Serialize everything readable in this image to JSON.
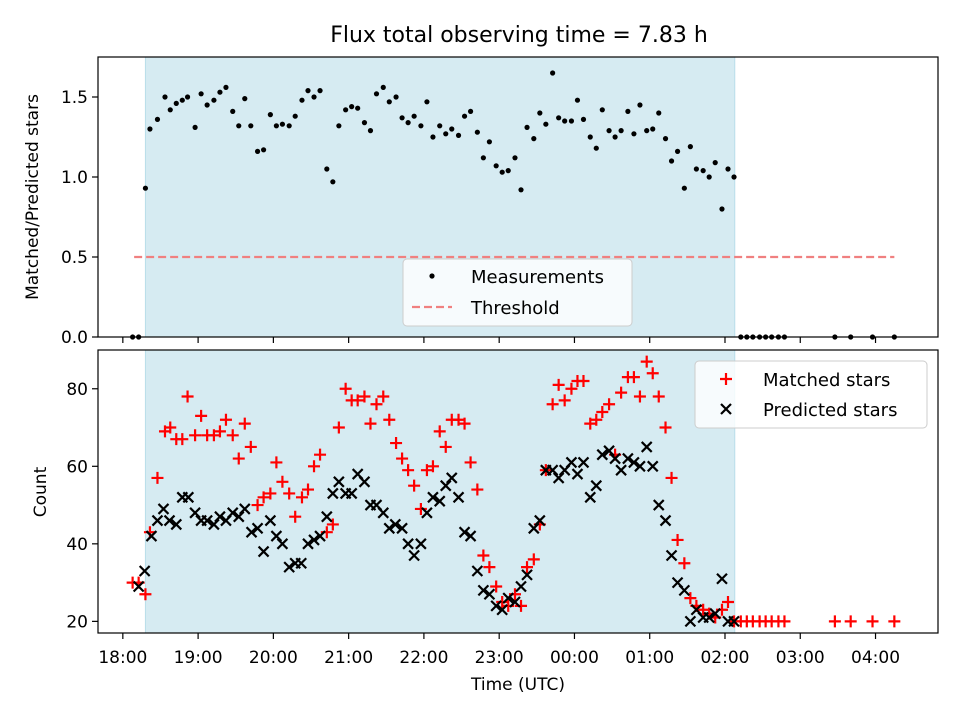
{
  "title": "Flux total observing time = 7.83 h",
  "xlabel": "Time (UTC)",
  "xticks": [
    "18:00",
    "19:00",
    "20:00",
    "21:00",
    "22:00",
    "23:00",
    "00:00",
    "01:00",
    "02:00",
    "03:00",
    "04:00"
  ],
  "colors": {
    "shade": "#add8e6",
    "threshold": "#f08080",
    "matched": "#ff0000",
    "predicted": "#000000",
    "measurement": "#000000"
  },
  "chart_data": [
    {
      "type": "scatter",
      "panel": "top",
      "ylabel": "Matched/Predicted stars",
      "xlim": [
        17.67,
        28.83
      ],
      "ylim": [
        0,
        1.75
      ],
      "yticks": [
        "0.0",
        "0.5",
        "1.0",
        "1.5"
      ],
      "shaded_interval": [
        18.3,
        26.13
      ],
      "threshold": {
        "label": "Threshold",
        "value": 0.5,
        "x": [
          18.15,
          28.25
        ]
      },
      "legend": {
        "position": "bottom-center",
        "entries": [
          "Measurements",
          "Threshold"
        ]
      },
      "series": [
        {
          "name": "Measurements",
          "x": [
            18.13,
            18.21,
            18.3,
            18.36,
            18.46,
            18.56,
            18.63,
            18.71,
            18.79,
            18.86,
            18.96,
            19.04,
            19.12,
            19.21,
            19.29,
            19.37,
            19.46,
            19.54,
            19.62,
            19.7,
            19.79,
            19.87,
            19.96,
            20.04,
            20.12,
            20.21,
            20.29,
            20.38,
            20.46,
            20.54,
            20.62,
            20.71,
            20.79,
            20.87,
            20.96,
            21.04,
            21.12,
            21.21,
            21.29,
            21.37,
            21.46,
            21.54,
            21.63,
            21.71,
            21.79,
            21.87,
            21.96,
            22.04,
            22.12,
            22.21,
            22.29,
            22.37,
            22.46,
            22.54,
            22.62,
            22.71,
            22.79,
            22.87,
            22.96,
            23.04,
            23.12,
            23.21,
            23.29,
            23.37,
            23.46,
            23.54,
            23.62,
            23.71,
            23.79,
            23.87,
            23.96,
            24.04,
            24.12,
            24.21,
            24.29,
            24.37,
            24.46,
            24.54,
            24.62,
            24.71,
            24.79,
            24.87,
            24.96,
            25.04,
            25.12,
            25.21,
            25.29,
            25.37,
            25.46,
            25.54,
            25.62,
            25.71,
            25.79,
            25.87,
            25.96,
            26.04,
            26.12,
            26.21,
            26.29,
            26.37,
            26.46,
            26.54,
            26.62,
            26.71,
            26.79,
            27.46,
            27.67,
            27.96,
            28.25
          ],
          "y": [
            0.0,
            0.0,
            0.93,
            1.3,
            1.36,
            1.5,
            1.42,
            1.46,
            1.48,
            1.5,
            1.31,
            1.52,
            1.45,
            1.48,
            1.53,
            1.56,
            1.41,
            1.32,
            1.49,
            1.32,
            1.16,
            1.17,
            1.39,
            1.32,
            1.33,
            1.32,
            1.38,
            1.48,
            1.54,
            1.5,
            1.54,
            1.05,
            0.97,
            1.32,
            1.42,
            1.44,
            1.43,
            1.34,
            1.29,
            1.52,
            1.56,
            1.47,
            1.5,
            1.37,
            1.34,
            1.38,
            1.32,
            1.47,
            1.25,
            1.32,
            1.27,
            1.3,
            1.26,
            1.38,
            1.41,
            1.28,
            1.12,
            1.22,
            1.07,
            1.03,
            1.04,
            1.12,
            0.92,
            1.31,
            1.24,
            1.4,
            1.33,
            1.65,
            1.37,
            1.35,
            1.35,
            1.48,
            1.36,
            1.25,
            1.18,
            1.42,
            1.29,
            1.25,
            1.29,
            1.41,
            1.27,
            1.45,
            1.29,
            1.3,
            1.4,
            1.24,
            1.1,
            1.16,
            0.93,
            1.19,
            1.05,
            1.04,
            1.0,
            1.09,
            0.8,
            1.05,
            1.0,
            0.0,
            0.0,
            0.0,
            0.0,
            0.0,
            0.0,
            0.0,
            0.0,
            0.0,
            0.0,
            0.0,
            0.0
          ]
        }
      ]
    },
    {
      "type": "scatter",
      "panel": "bottom",
      "ylabel": "Count",
      "xlim": [
        17.67,
        28.83
      ],
      "ylim": [
        17,
        90
      ],
      "yticks": [
        "20",
        "40",
        "60",
        "80"
      ],
      "shaded_interval": [
        18.3,
        26.13
      ],
      "legend": {
        "position": "top-right",
        "entries": [
          "Matched stars",
          "Predicted stars"
        ]
      },
      "series": [
        {
          "name": "Matched stars",
          "marker": "+",
          "x": [
            18.13,
            18.21,
            18.3,
            18.36,
            18.46,
            18.56,
            18.63,
            18.71,
            18.79,
            18.86,
            18.96,
            19.04,
            19.12,
            19.21,
            19.29,
            19.37,
            19.46,
            19.54,
            19.62,
            19.7,
            19.79,
            19.87,
            19.96,
            20.04,
            20.12,
            20.21,
            20.29,
            20.38,
            20.46,
            20.54,
            20.62,
            20.71,
            20.79,
            20.87,
            20.96,
            21.04,
            21.12,
            21.21,
            21.29,
            21.37,
            21.46,
            21.54,
            21.63,
            21.71,
            21.79,
            21.87,
            21.96,
            22.04,
            22.12,
            22.21,
            22.29,
            22.37,
            22.46,
            22.54,
            22.62,
            22.71,
            22.79,
            22.87,
            22.96,
            23.04,
            23.12,
            23.21,
            23.29,
            23.37,
            23.46,
            23.54,
            23.62,
            23.71,
            23.79,
            23.87,
            23.96,
            24.04,
            24.12,
            24.21,
            24.29,
            24.37,
            24.46,
            24.54,
            24.62,
            24.71,
            24.79,
            24.87,
            24.96,
            25.04,
            25.12,
            25.21,
            25.29,
            25.37,
            25.46,
            25.54,
            25.62,
            25.71,
            25.79,
            25.87,
            25.96,
            26.04,
            26.12,
            26.21,
            26.29,
            26.37,
            26.46,
            26.54,
            26.62,
            26.71,
            26.79,
            27.46,
            27.67,
            27.96,
            28.25
          ],
          "y": [
            30,
            30,
            27,
            43,
            57,
            69,
            70,
            67,
            67,
            78,
            68,
            73,
            68,
            68,
            69,
            72,
            68,
            62,
            71,
            65,
            50,
            52,
            53,
            61,
            56,
            53,
            47,
            52,
            54,
            60,
            63,
            43,
            45,
            70,
            80,
            77,
            77,
            78,
            71,
            76,
            78,
            72,
            66,
            62,
            59,
            55,
            49,
            59,
            60,
            69,
            65,
            72,
            72,
            71,
            61,
            54,
            37,
            34,
            29,
            25,
            24,
            27,
            24,
            34,
            36,
            45,
            59,
            76,
            81,
            77,
            80,
            82,
            82,
            71,
            72,
            74,
            76,
            63,
            79,
            83,
            83,
            78,
            87,
            84,
            78,
            70,
            57,
            41,
            35,
            26,
            24,
            23,
            22,
            21,
            23,
            25,
            20,
            20,
            20,
            20,
            20,
            20,
            20,
            20,
            20,
            20,
            20,
            20,
            20
          ]
        },
        {
          "name": "Predicted stars",
          "marker": "x",
          "x": [
            18.21,
            18.29,
            18.38,
            18.46,
            18.54,
            18.62,
            18.71,
            18.79,
            18.87,
            18.96,
            19.04,
            19.12,
            19.21,
            19.29,
            19.37,
            19.46,
            19.54,
            19.62,
            19.71,
            19.79,
            19.87,
            19.96,
            20.04,
            20.12,
            20.21,
            20.29,
            20.37,
            20.46,
            20.54,
            20.62,
            20.71,
            20.79,
            20.87,
            20.96,
            21.04,
            21.12,
            21.21,
            21.29,
            21.37,
            21.46,
            21.54,
            21.62,
            21.71,
            21.79,
            21.87,
            21.96,
            22.04,
            22.12,
            22.21,
            22.29,
            22.37,
            22.46,
            22.54,
            22.62,
            22.71,
            22.79,
            22.87,
            22.96,
            23.04,
            23.12,
            23.21,
            23.29,
            23.37,
            23.46,
            23.54,
            23.62,
            23.71,
            23.79,
            23.87,
            23.96,
            24.04,
            24.12,
            24.21,
            24.29,
            24.37,
            24.46,
            24.54,
            24.62,
            24.71,
            24.79,
            24.87,
            24.96,
            25.04,
            25.12,
            25.21,
            25.29,
            25.37,
            25.46,
            25.54,
            25.62,
            25.71,
            25.79,
            25.87,
            25.96,
            26.04,
            26.12
          ],
          "y": [
            29,
            33,
            42,
            46,
            49,
            46,
            45,
            52,
            52,
            48,
            46,
            46,
            45,
            47,
            46,
            48,
            47,
            49,
            43,
            44,
            38,
            46,
            42,
            40,
            34,
            35,
            35,
            40,
            41,
            42,
            47,
            53,
            56,
            53,
            53,
            58,
            56,
            50,
            50,
            48,
            44,
            45,
            44,
            40,
            37,
            40,
            48,
            52,
            51,
            55,
            57,
            52,
            43,
            42,
            33,
            28,
            27,
            24,
            23,
            26,
            25,
            29,
            32,
            44,
            46,
            59,
            59,
            57,
            59,
            61,
            58,
            61,
            52,
            55,
            63,
            64,
            62,
            59,
            62,
            61,
            60,
            65,
            60,
            50,
            46,
            37,
            30,
            28,
            20,
            23,
            21,
            21,
            22,
            31,
            20,
            20
          ]
        }
      ]
    }
  ]
}
